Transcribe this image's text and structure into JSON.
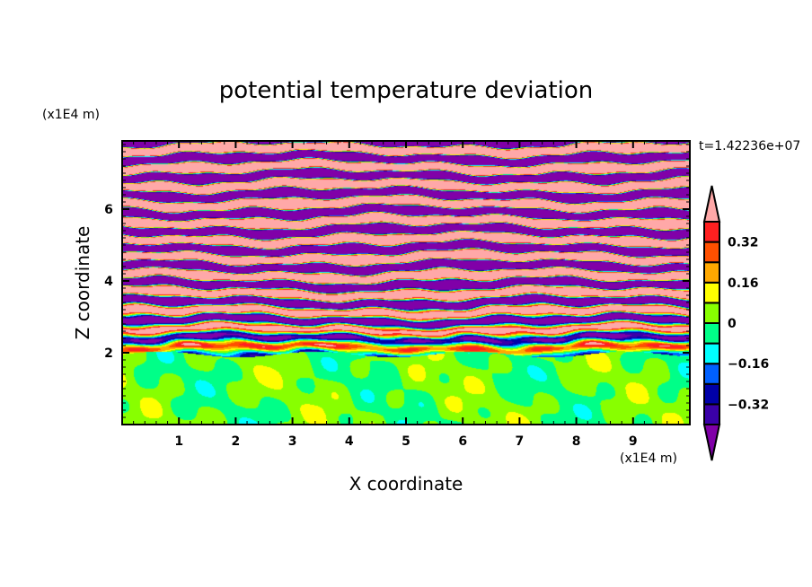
{
  "chart_data": {
    "type": "heatmap",
    "subtype": "filled contour",
    "title": "potential temperature deviation",
    "xlabel": "X coordinate",
    "ylabel": "Z coordinate",
    "x_unit": "(x1E4 m)",
    "y_unit": "(x1E4 m)",
    "time_label": "t=1.42236e+07",
    "xlim": [
      0,
      10
    ],
    "ylim": [
      0,
      7.9
    ],
    "xticks": [
      1,
      2,
      3,
      4,
      5,
      6,
      7,
      8,
      9
    ],
    "yticks": [
      2,
      4,
      6
    ],
    "colorbar": {
      "levels": [
        -0.4,
        -0.32,
        -0.24,
        -0.16,
        -0.08,
        0,
        0.08,
        0.16,
        0.24,
        0.32,
        0.4
      ],
      "tick_labels": [
        "0.32",
        "0.16",
        "0",
        "−0.16",
        "−0.32"
      ],
      "tick_values": [
        0.32,
        0.16,
        0,
        -0.16,
        -0.32
      ],
      "colors": [
        "#3a00a8",
        "#0000a8",
        "#0060ff",
        "#00ffff",
        "#00ff88",
        "#88ff00",
        "#ffff00",
        "#ffa800",
        "#ff5000",
        "#ff2020"
      ],
      "under_color": "#8000a8",
      "over_color": "#ffa8a8",
      "extend": "both"
    },
    "field_description_levels": "z<2: near 0 (green); z>2: horizontal alternating bands saturating beyond ±0.4 above z≈4"
  }
}
